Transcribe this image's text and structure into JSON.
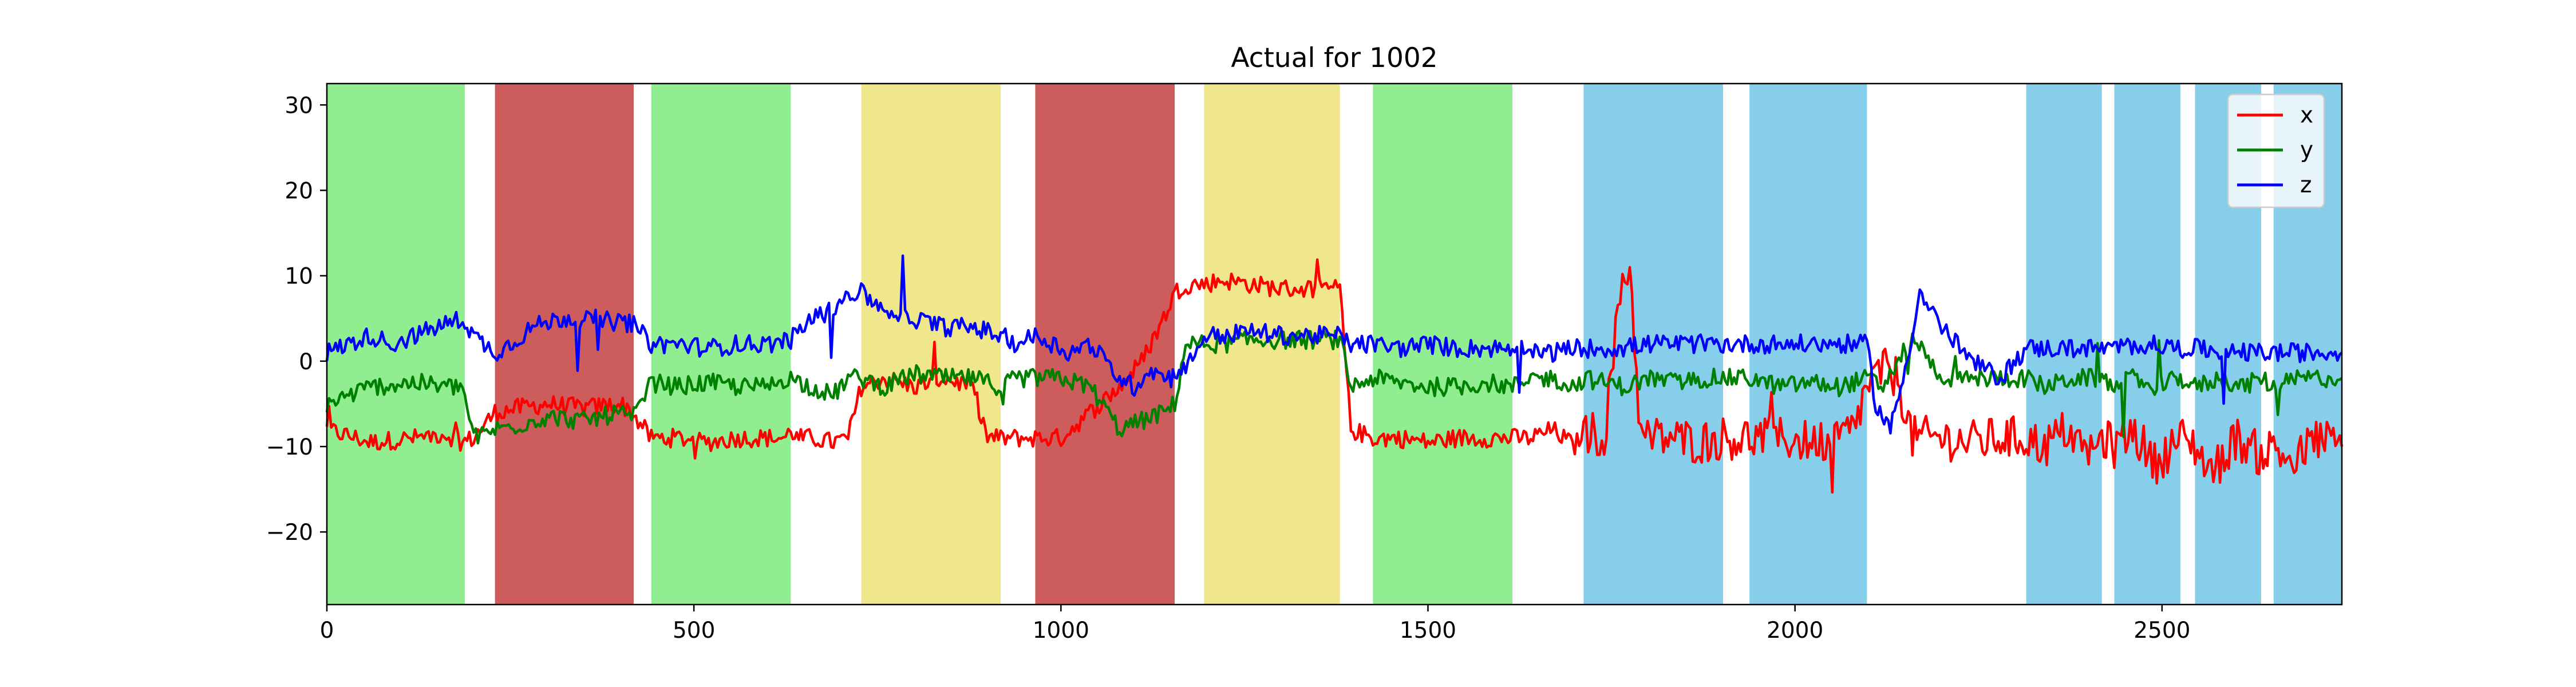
{
  "chart_data": {
    "type": "line",
    "title": "Actual for 1002",
    "xlabel": "",
    "ylabel": "",
    "xlim": [
      0,
      2745
    ],
    "ylim": [
      -28.5,
      32.5
    ],
    "xticks": [
      0,
      500,
      1000,
      1500,
      2000,
      2500
    ],
    "yticks": [
      -20,
      -10,
      0,
      10,
      20,
      30
    ],
    "xtick_labels": [
      "0",
      "500",
      "1000",
      "1500",
      "2000",
      "2500"
    ],
    "ytick_labels": [
      "−20",
      "−10",
      "0",
      "10",
      "20",
      "30"
    ],
    "grid": false,
    "legend_position": "upper-right",
    "activity_bands": [
      {
        "start": 0,
        "end": 188,
        "color": "#90ee90"
      },
      {
        "start": 229,
        "end": 418,
        "color": "#cd5c5c"
      },
      {
        "start": 442,
        "end": 632,
        "color": "#90ee90"
      },
      {
        "start": 728,
        "end": 918,
        "color": "#f0e68c"
      },
      {
        "start": 965,
        "end": 1155,
        "color": "#cd5c5c"
      },
      {
        "start": 1195,
        "end": 1380,
        "color": "#f0e68c"
      },
      {
        "start": 1425,
        "end": 1615,
        "color": "#90ee90"
      },
      {
        "start": 1712,
        "end": 1902,
        "color": "#87ceeb"
      },
      {
        "start": 1938,
        "end": 2098,
        "color": "#87ceeb"
      },
      {
        "start": 2315,
        "end": 2418,
        "color": "#87ceeb"
      },
      {
        "start": 2435,
        "end": 2525,
        "color": "#87ceeb"
      },
      {
        "start": 2545,
        "end": 2635,
        "color": "#87ceeb"
      },
      {
        "start": 2652,
        "end": 2745,
        "color": "#87ceeb"
      }
    ],
    "series": [
      {
        "name": "x",
        "color": "#ff0000",
        "x": [
          0,
          60,
          120,
          160,
          185,
          200,
          229,
          260,
          300,
          350,
          400,
          415,
          442,
          480,
          520,
          560,
          600,
          625,
          632,
          640,
          660,
          690,
          710,
          728,
          760,
          800,
          840,
          880,
          900,
          918,
          940,
          965,
          1000,
          1040,
          1080,
          1110,
          1140,
          1155,
          1170,
          1195,
          1220,
          1260,
          1300,
          1340,
          1380,
          1395,
          1425,
          1460,
          1500,
          1540,
          1580,
          1615,
          1640,
          1670,
          1700,
          1712,
          1740,
          1765,
          1775,
          1790,
          1830,
          1870,
          1902,
          1938,
          1980,
          2020,
          2060,
          2080,
          2098,
          2120,
          2140,
          2160,
          2200,
          2240,
          2280,
          2315,
          2340,
          2370,
          2400,
          2418,
          2435,
          2460,
          2490,
          2525,
          2545,
          2570,
          2600,
          2635,
          2652,
          2680,
          2710,
          2745
        ],
        "y": [
          -8,
          -9.5,
          -9,
          -8.5,
          -9.5,
          -9,
          -6,
          -5.5,
          -5,
          -5.5,
          -5,
          -6,
          -9,
          -9,
          -9.5,
          -9,
          -9,
          -9,
          -8,
          -9,
          -9,
          -9.5,
          -9,
          -3,
          -2,
          -3,
          -2,
          -3,
          -9,
          -9,
          -9,
          -9,
          -9,
          -6,
          -3,
          0,
          5,
          8,
          9,
          9,
          9.5,
          9,
          8.5,
          8.5,
          8.5,
          -8,
          -9,
          -9,
          -9.5,
          -9,
          -9,
          -9,
          -9,
          -8,
          -10,
          -8,
          -9,
          10,
          11,
          -9,
          -9,
          -9.5,
          -9,
          -9,
          -9,
          -9.5,
          -9,
          -8,
          -3,
          -1,
          -2,
          -9,
          -9,
          -9.5,
          -9,
          -9,
          -10,
          -8,
          -11,
          -9,
          -10,
          -8,
          -12,
          -9,
          -10,
          -13,
          -9,
          -11,
          -10,
          -12,
          -9,
          -10
        ]
      },
      {
        "name": "y",
        "color": "#008000",
        "x": [
          0,
          60,
          120,
          160,
          185,
          200,
          229,
          260,
          300,
          350,
          400,
          415,
          442,
          480,
          520,
          560,
          600,
          625,
          632,
          660,
          690,
          710,
          728,
          760,
          800,
          840,
          880,
          918,
          940,
          965,
          1000,
          1040,
          1080,
          1110,
          1140,
          1155,
          1170,
          1195,
          1220,
          1260,
          1300,
          1340,
          1380,
          1395,
          1425,
          1460,
          1500,
          1540,
          1580,
          1615,
          1640,
          1670,
          1700,
          1712,
          1740,
          1770,
          1800,
          1840,
          1880,
          1902,
          1938,
          1980,
          2020,
          2060,
          2098,
          2120,
          2160,
          2200,
          2240,
          2280,
          2315,
          2340,
          2380,
          2418,
          2435,
          2460,
          2490,
          2525,
          2545,
          2580,
          2610,
          2635,
          2652,
          2690,
          2745
        ],
        "y": [
          -5,
          -3,
          -2.5,
          -3,
          -3,
          -9,
          -8,
          -7.5,
          -6.5,
          -7,
          -6,
          -7,
          -2.5,
          -3,
          -2.5,
          -3,
          -3,
          -2,
          -2,
          -3,
          -4,
          -2,
          -2,
          -3,
          -1.5,
          -2,
          -2,
          -3,
          -2,
          -2,
          -2,
          -3,
          -8,
          -7,
          -6,
          -5,
          2,
          2,
          2,
          2.5,
          2.5,
          2.5,
          2.5,
          -3,
          -2,
          -2.5,
          -3,
          -3,
          -2.5,
          -3,
          -2,
          -2,
          -3,
          -2,
          -2.5,
          -3,
          -2,
          -2.5,
          -2,
          -2,
          -2,
          -3,
          -2.5,
          -3,
          -2,
          -3,
          3,
          -2,
          -2,
          -2,
          -2,
          -3,
          -2,
          -2,
          -3,
          -2,
          -3,
          -2,
          -3,
          -2,
          -3,
          -2,
          -3,
          -2,
          -2
        ]
      },
      {
        "name": "z",
        "color": "#0000ff",
        "x": [
          0,
          30,
          60,
          90,
          120,
          150,
          185,
          200,
          229,
          250,
          280,
          320,
          360,
          400,
          415,
          442,
          480,
          520,
          560,
          600,
          632,
          660,
          690,
          710,
          728,
          760,
          800,
          840,
          880,
          918,
          940,
          965,
          990,
          1010,
          1040,
          1080,
          1100,
          1120,
          1150,
          1155,
          1170,
          1195,
          1220,
          1260,
          1300,
          1340,
          1380,
          1395,
          1425,
          1460,
          1500,
          1540,
          1580,
          1615,
          1640,
          1670,
          1700,
          1712,
          1760,
          1800,
          1850,
          1902,
          1938,
          1980,
          2020,
          2060,
          2098,
          2110,
          2130,
          2150,
          2170,
          2200,
          2240,
          2280,
          2315,
          2350,
          2400,
          2418,
          2435,
          2480,
          2525,
          2545,
          2590,
          2635,
          2652,
          2700,
          2745
        ],
        "y": [
          1,
          2,
          3,
          2,
          3,
          4,
          5,
          3,
          1,
          2,
          4,
          5,
          5,
          4.5,
          4.5,
          2,
          2,
          1.5,
          2,
          2,
          2.5,
          5,
          6,
          8,
          8,
          6,
          5,
          4,
          4,
          3,
          2,
          3,
          2,
          1,
          2,
          -2,
          -3,
          -1,
          -2,
          -1,
          -1,
          3,
          3,
          3.5,
          3,
          3,
          3,
          2,
          2,
          1.5,
          2,
          1.5,
          1.5,
          1.5,
          1,
          1,
          1.5,
          1.5,
          1.5,
          2,
          2,
          2,
          2,
          2,
          2,
          2,
          2,
          -5,
          -8,
          -1,
          8,
          4,
          0,
          -2,
          1.5,
          1.5,
          1.5,
          1.5,
          1.5,
          2,
          1.5,
          1.5,
          1,
          1,
          1,
          1,
          1
        ]
      }
    ]
  }
}
